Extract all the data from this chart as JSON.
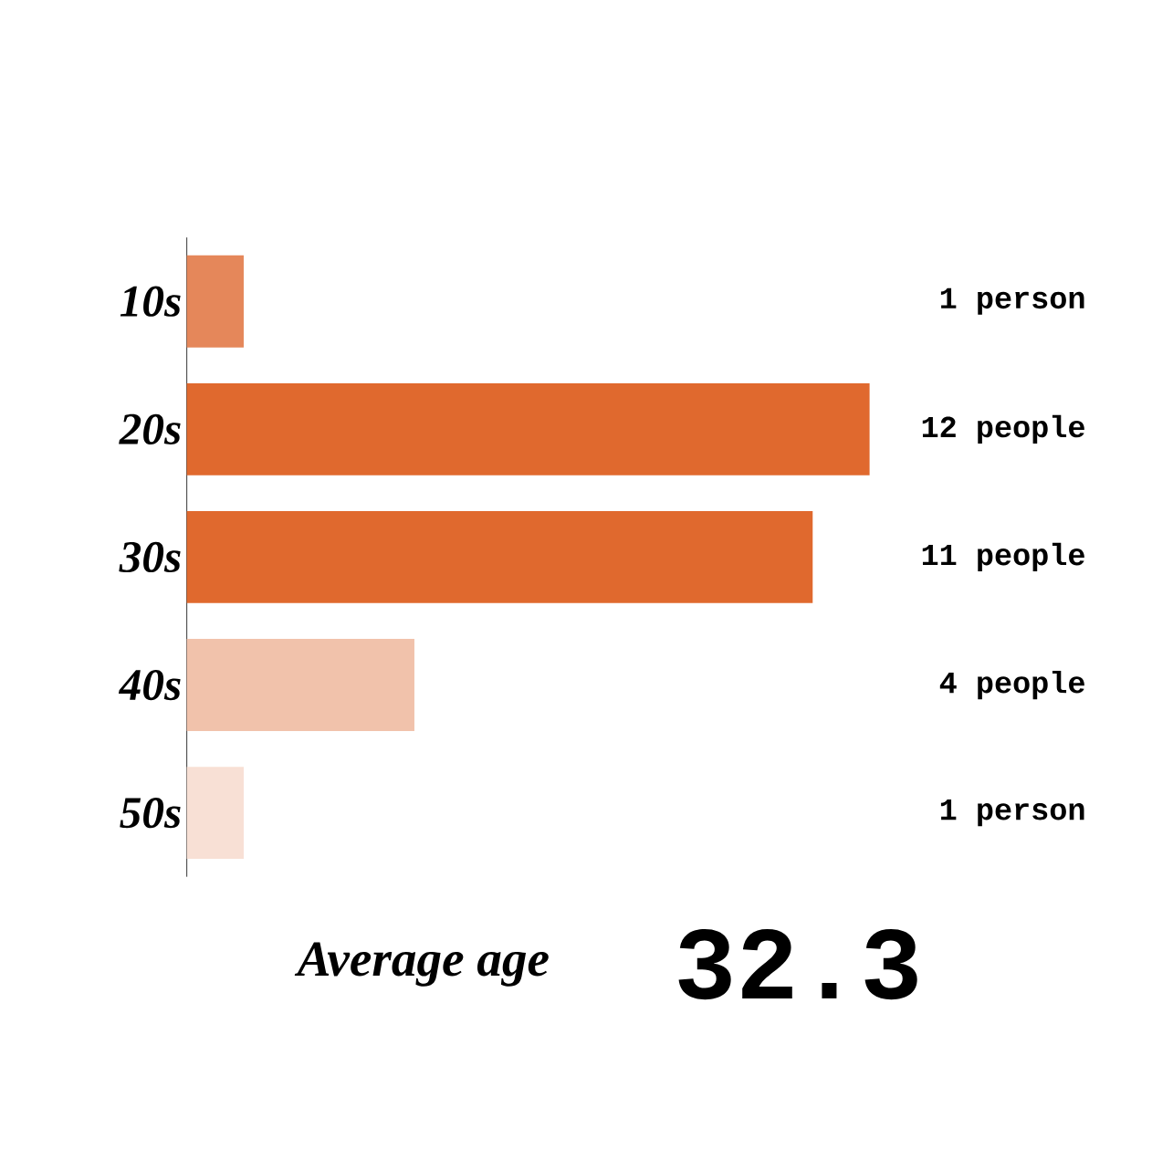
{
  "chart_data": {
    "type": "bar",
    "orientation": "horizontal",
    "categories": [
      "10s",
      "20s",
      "30s",
      "40s",
      "50s"
    ],
    "values": [
      1,
      12,
      11,
      4,
      1
    ],
    "colors": [
      "#e5875a",
      "#e0692e",
      "#e0692e",
      "#f1c2ab",
      "#f8e0d5"
    ],
    "value_labels": [
      "1 person",
      "12 people",
      "11 people",
      "4 people",
      "1 person"
    ],
    "xlim": [
      0,
      12
    ],
    "tick_labels": "y",
    "annotations": [
      "Average age",
      "32.3"
    ]
  }
}
